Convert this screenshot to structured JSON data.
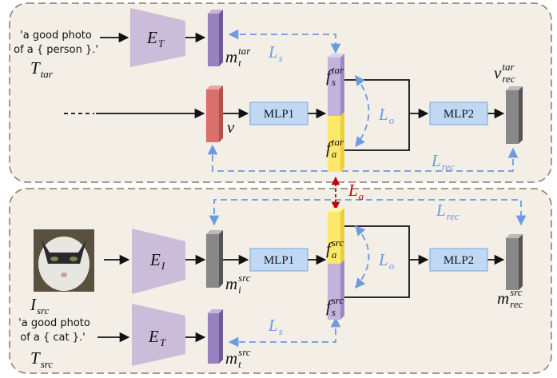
{
  "top_panel": {
    "prompt": [
      "'a good photo",
      "of a { person }.'"
    ],
    "prompt_symbol": {
      "base": "T",
      "sub": "tar"
    },
    "text_encoder": {
      "base": "E",
      "sub": "T"
    },
    "text_feature": {
      "base": "m",
      "sub": "t",
      "sup": "tar"
    },
    "loss_s": {
      "base": "L",
      "sub": "s"
    },
    "visual_feature": {
      "base": "v"
    },
    "mlp1": "MLP1",
    "specific_feature": {
      "base": "f",
      "sub": "s",
      "sup": "tar"
    },
    "agnostic_feature": {
      "base": "f",
      "sub": "a",
      "sup": "tar"
    },
    "loss_o": {
      "base": "L",
      "sub": "o"
    },
    "mlp2": "MLP2",
    "reconstruction": {
      "base": "v",
      "sub": "rec",
      "sup": "tar"
    },
    "loss_rec": {
      "base": "L",
      "sub": "rec"
    }
  },
  "align_loss": {
    "base": "L",
    "sub": "a"
  },
  "bottom_panel": {
    "loss_rec": {
      "base": "L",
      "sub": "rec"
    },
    "image_encoder": {
      "base": "E",
      "sub": "I"
    },
    "image_feature": {
      "base": "m",
      "sub": "i",
      "sup": "src"
    },
    "mlp1": "MLP1",
    "agnostic_feature": {
      "base": "f",
      "sub": "a",
      "sup": "src"
    },
    "loss_o": {
      "base": "L",
      "sub": "o"
    },
    "mlp2": "MLP2",
    "reconstruction": {
      "base": "m",
      "sub": "rec",
      "sup": "src"
    },
    "image_symbol": {
      "base": "I",
      "sub": "src"
    },
    "prompt": [
      "'a good photo",
      "of a { cat }.'"
    ],
    "text_encoder": {
      "base": "E",
      "sub": "T"
    },
    "specific_feature": {
      "base": "f",
      "sub": "s",
      "sup": "src"
    },
    "loss_s": {
      "base": "L",
      "sub": "s"
    },
    "text_feature": {
      "base": "m",
      "sub": "t",
      "sup": "src"
    },
    "prompt_symbol": {
      "base": "T",
      "sub": "src"
    }
  }
}
